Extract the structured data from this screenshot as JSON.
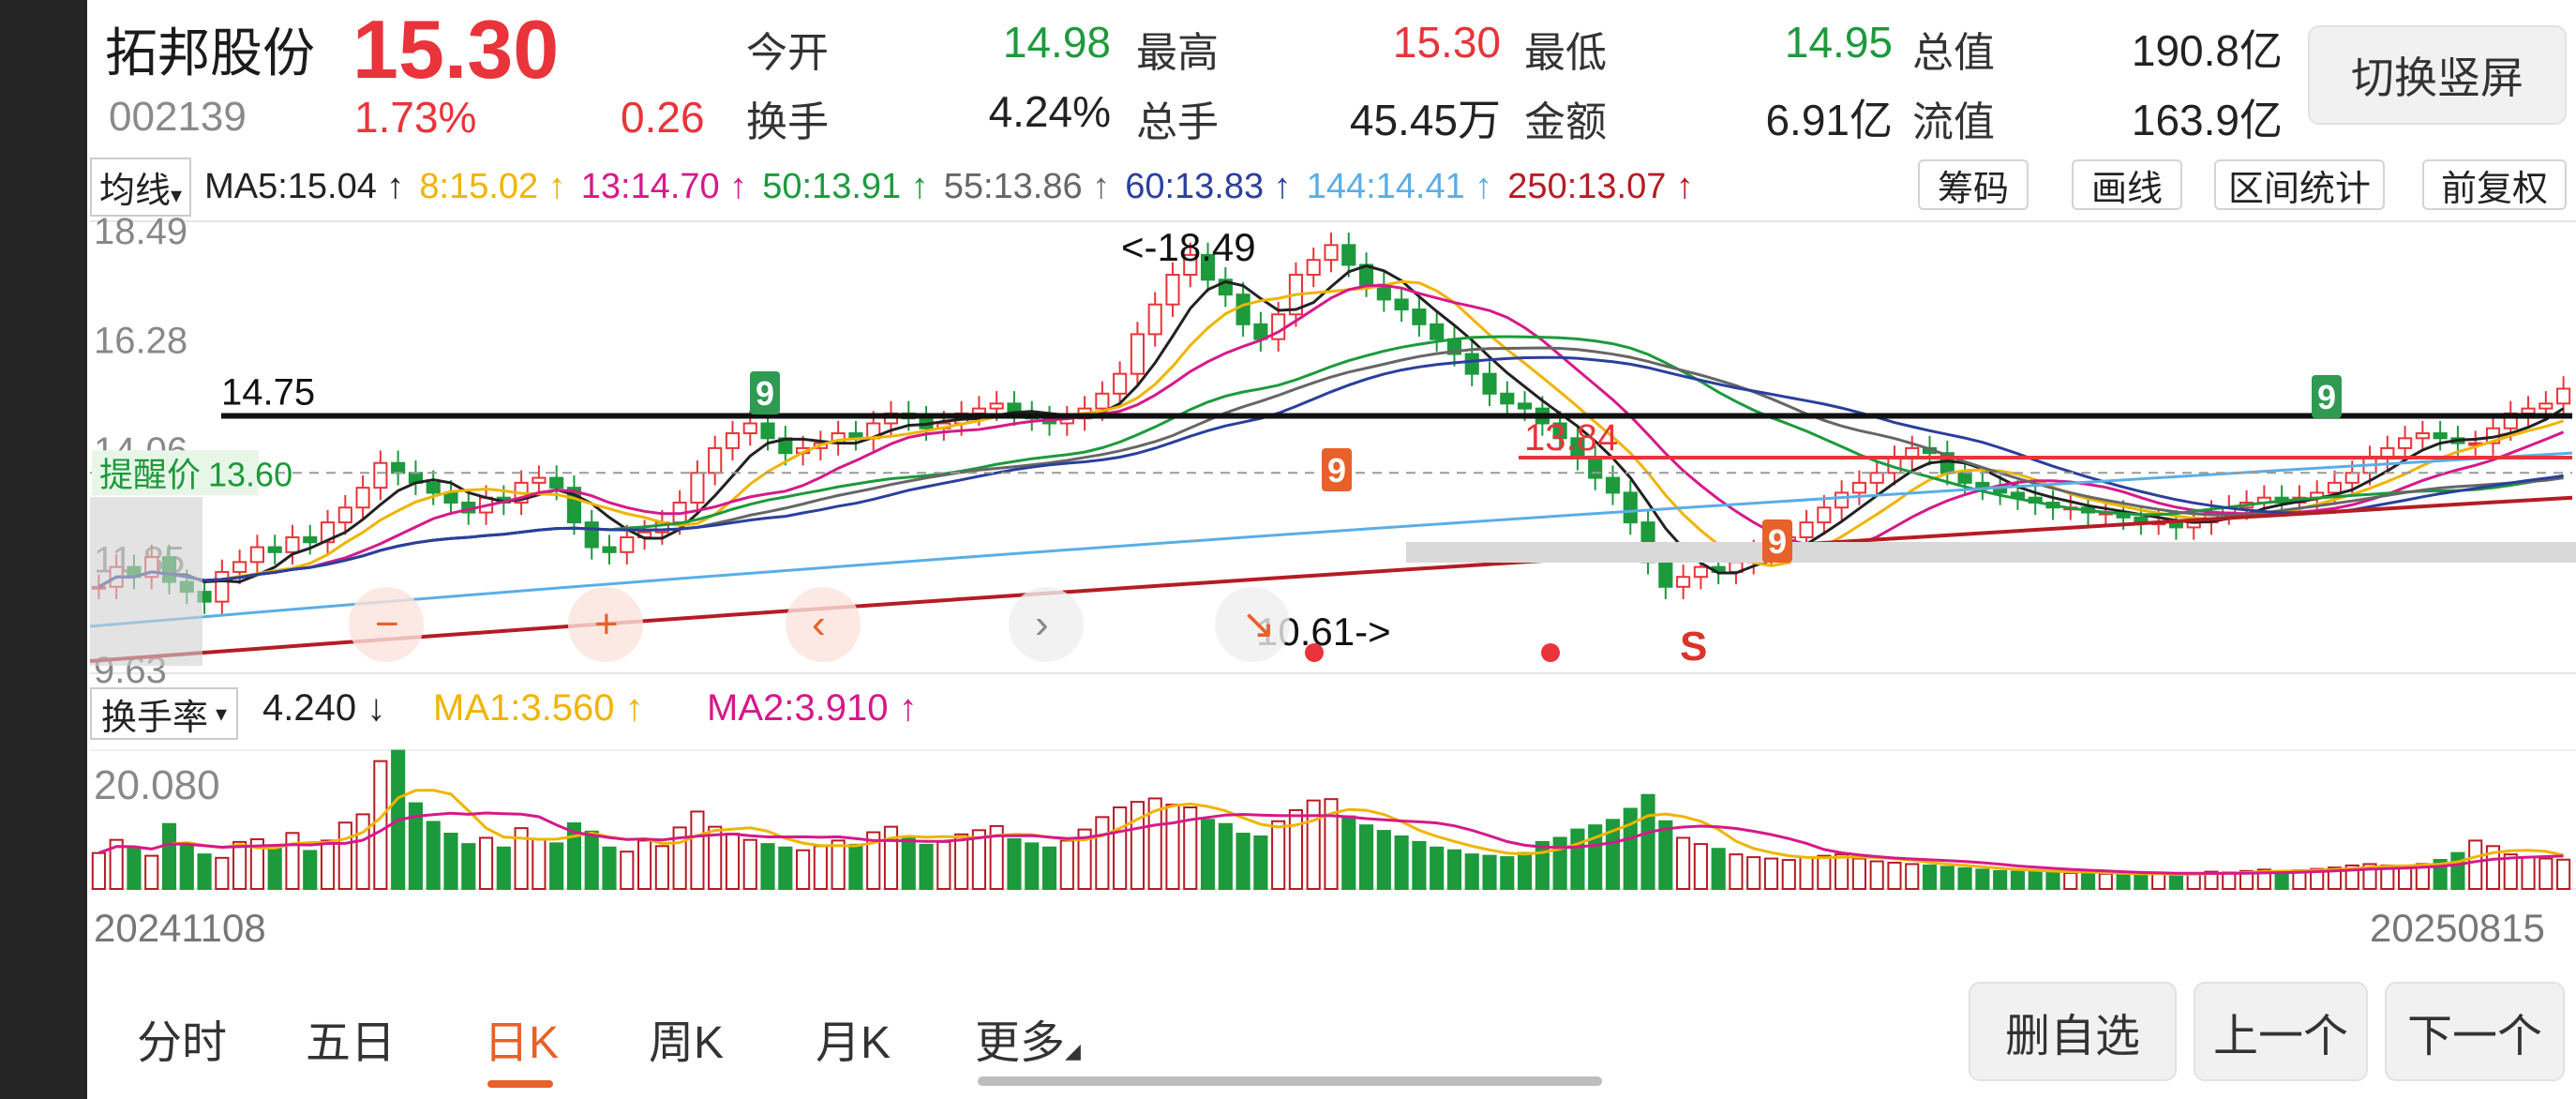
{
  "header": {
    "name": "拓邦股份",
    "price": "15.30",
    "code": "002139",
    "change_pct": "1.73%",
    "change_amt": "0.26",
    "quotes": [
      {
        "label": "今开",
        "value": "14.98",
        "color": "#1c9a3c"
      },
      {
        "label": "最高",
        "value": "15.30",
        "color": "#e8343a"
      },
      {
        "label": "最低",
        "value": "14.95",
        "color": "#1c9a3c"
      },
      {
        "label": "总值",
        "value": "190.8亿",
        "color": "#222222"
      },
      {
        "label": "换手",
        "value": "4.24%",
        "color": "#222222"
      },
      {
        "label": "总手",
        "value": "45.45万",
        "color": "#222222"
      },
      {
        "label": "金额",
        "value": "6.91亿",
        "color": "#222222"
      },
      {
        "label": "流值",
        "value": "163.9亿",
        "color": "#222222"
      }
    ],
    "switch_label": "切换竖屏"
  },
  "ma_bar": {
    "selector": "均线",
    "items": [
      {
        "text": "MA5:15.04 ↑",
        "color": "#222222"
      },
      {
        "text": "8:15.02 ↑",
        "color": "#f0b400"
      },
      {
        "text": "13:14.70 ↑",
        "color": "#d6198a"
      },
      {
        "text": "50:13.91 ↑",
        "color": "#1c9a3c"
      },
      {
        "text": "55:13.86 ↑",
        "color": "#666666"
      },
      {
        "text": "60:13.83 ↑",
        "color": "#2a3f9e"
      },
      {
        "text": "144:14.41 ↑",
        "color": "#5aaee6"
      },
      {
        "text": "250:13.07 ↑",
        "color": "#b51c24"
      }
    ],
    "tools": [
      "筹码",
      "画线",
      "区间统计",
      "前复权"
    ]
  },
  "chart_data": {
    "type": "candlestick",
    "y_tick_labels": [
      "18.49",
      "16.28",
      "14.06",
      "11.85",
      "9.63"
    ],
    "ylim": [
      9.63,
      18.49
    ],
    "hline": {
      "value": 14.75,
      "label": "14.75"
    },
    "alert": {
      "label": "提醒价",
      "value": "13.60"
    },
    "annotations": {
      "high": "<-18.49",
      "low": "10.61->",
      "level": "13.84",
      "signal": "S",
      "counts": [
        "9",
        "9",
        "9",
        "9"
      ]
    },
    "dates": [
      "20241108",
      "20250815"
    ],
    "close_series": [
      11.3,
      11.7,
      11.5,
      11.9,
      11.4,
      11.2,
      11.0,
      11.6,
      11.8,
      12.1,
      12.0,
      12.3,
      12.2,
      12.6,
      12.9,
      13.3,
      13.8,
      13.6,
      13.4,
      13.2,
      13.0,
      12.8,
      13.1,
      13.0,
      13.4,
      13.5,
      13.3,
      12.6,
      12.1,
      12.0,
      12.3,
      12.4,
      12.6,
      13.0,
      13.6,
      14.1,
      14.4,
      14.6,
      14.3,
      14.0,
      14.1,
      14.2,
      14.4,
      14.3,
      14.6,
      14.8,
      14.7,
      14.5,
      14.6,
      14.8,
      14.9,
      15.0,
      14.8,
      14.7,
      14.6,
      14.7,
      14.9,
      15.2,
      15.6,
      16.4,
      17.0,
      17.6,
      18.0,
      17.5,
      17.2,
      16.6,
      16.3,
      16.8,
      17.6,
      17.9,
      18.2,
      17.8,
      17.4,
      17.1,
      16.9,
      16.6,
      16.3,
      16.0,
      15.6,
      15.2,
      15.0,
      14.9,
      14.6,
      14.3,
      13.9,
      13.5,
      13.2,
      12.6,
      11.8,
      11.3,
      11.5,
      11.7,
      11.6,
      11.8,
      12.0,
      12.1,
      12.3,
      12.6,
      12.9,
      13.2,
      13.4,
      13.6,
      13.9,
      14.1,
      14.0,
      13.6,
      13.4,
      13.3,
      13.2,
      13.1,
      13.0,
      12.9,
      12.9,
      12.8,
      12.8,
      12.7,
      12.6,
      12.6,
      12.5,
      12.6,
      12.8,
      12.9,
      13.0,
      13.1,
      13.0,
      13.1,
      13.2,
      13.4,
      13.6,
      13.9,
      14.1,
      14.3,
      14.4,
      14.3,
      14.2,
      14.2,
      14.5,
      14.8,
      14.9,
      15.0,
      15.3
    ],
    "volume_panel": {
      "selector": "换手率",
      "value": "4.240 ↓",
      "ma1": "MA1:3.560 ↑",
      "ma2": "MA2:3.910 ↑",
      "max_label": "20.080",
      "turnover": [
        5.2,
        7.1,
        6.0,
        4.8,
        9.4,
        6.3,
        5.0,
        4.5,
        6.8,
        7.2,
        6.0,
        8.1,
        5.5,
        7.0,
        9.6,
        10.8,
        18.5,
        20.0,
        12.4,
        9.7,
        8.0,
        6.5,
        7.4,
        6.0,
        8.8,
        7.2,
        6.6,
        9.5,
        8.3,
        6.0,
        5.4,
        7.0,
        6.2,
        8.9,
        11.2,
        9.0,
        8.0,
        7.1,
        6.5,
        6.0,
        5.6,
        6.2,
        7.0,
        6.4,
        8.2,
        9.0,
        7.5,
        6.4,
        6.8,
        7.9,
        8.5,
        9.1,
        7.2,
        6.6,
        6.0,
        7.0,
        8.6,
        10.4,
        11.8,
        12.6,
        13.1,
        12.2,
        11.8,
        10.0,
        9.4,
        8.0,
        7.6,
        9.8,
        11.4,
        12.8,
        13.0,
        10.5,
        9.2,
        8.4,
        7.6,
        6.8,
        6.0,
        5.6,
        5.0,
        4.8,
        4.6,
        5.2,
        6.8,
        7.4,
        8.6,
        9.2,
        10.0,
        11.6,
        13.6,
        9.8,
        7.4,
        6.5,
        5.8,
        5.0,
        4.6,
        4.4,
        4.2,
        4.6,
        4.8,
        5.0,
        4.4,
        4.0,
        3.8,
        3.6,
        3.4,
        3.2,
        3.0,
        2.8,
        2.6,
        2.5,
        2.6,
        2.4,
        2.3,
        2.4,
        2.2,
        2.1,
        2.0,
        2.2,
        2.1,
        2.3,
        2.5,
        2.4,
        2.6,
        2.8,
        2.6,
        2.7,
        2.9,
        3.1,
        3.4,
        3.6,
        3.4,
        3.2,
        3.6,
        4.2,
        5.2,
        7.0,
        6.2,
        5.0,
        4.6,
        4.4,
        4.24
      ]
    }
  },
  "tabs": [
    "分时",
    "五日",
    "日K",
    "周K",
    "月K",
    "更多"
  ],
  "active_tab": "日K",
  "bottom_buttons": [
    "删自选",
    "上一个",
    "下一个"
  ]
}
